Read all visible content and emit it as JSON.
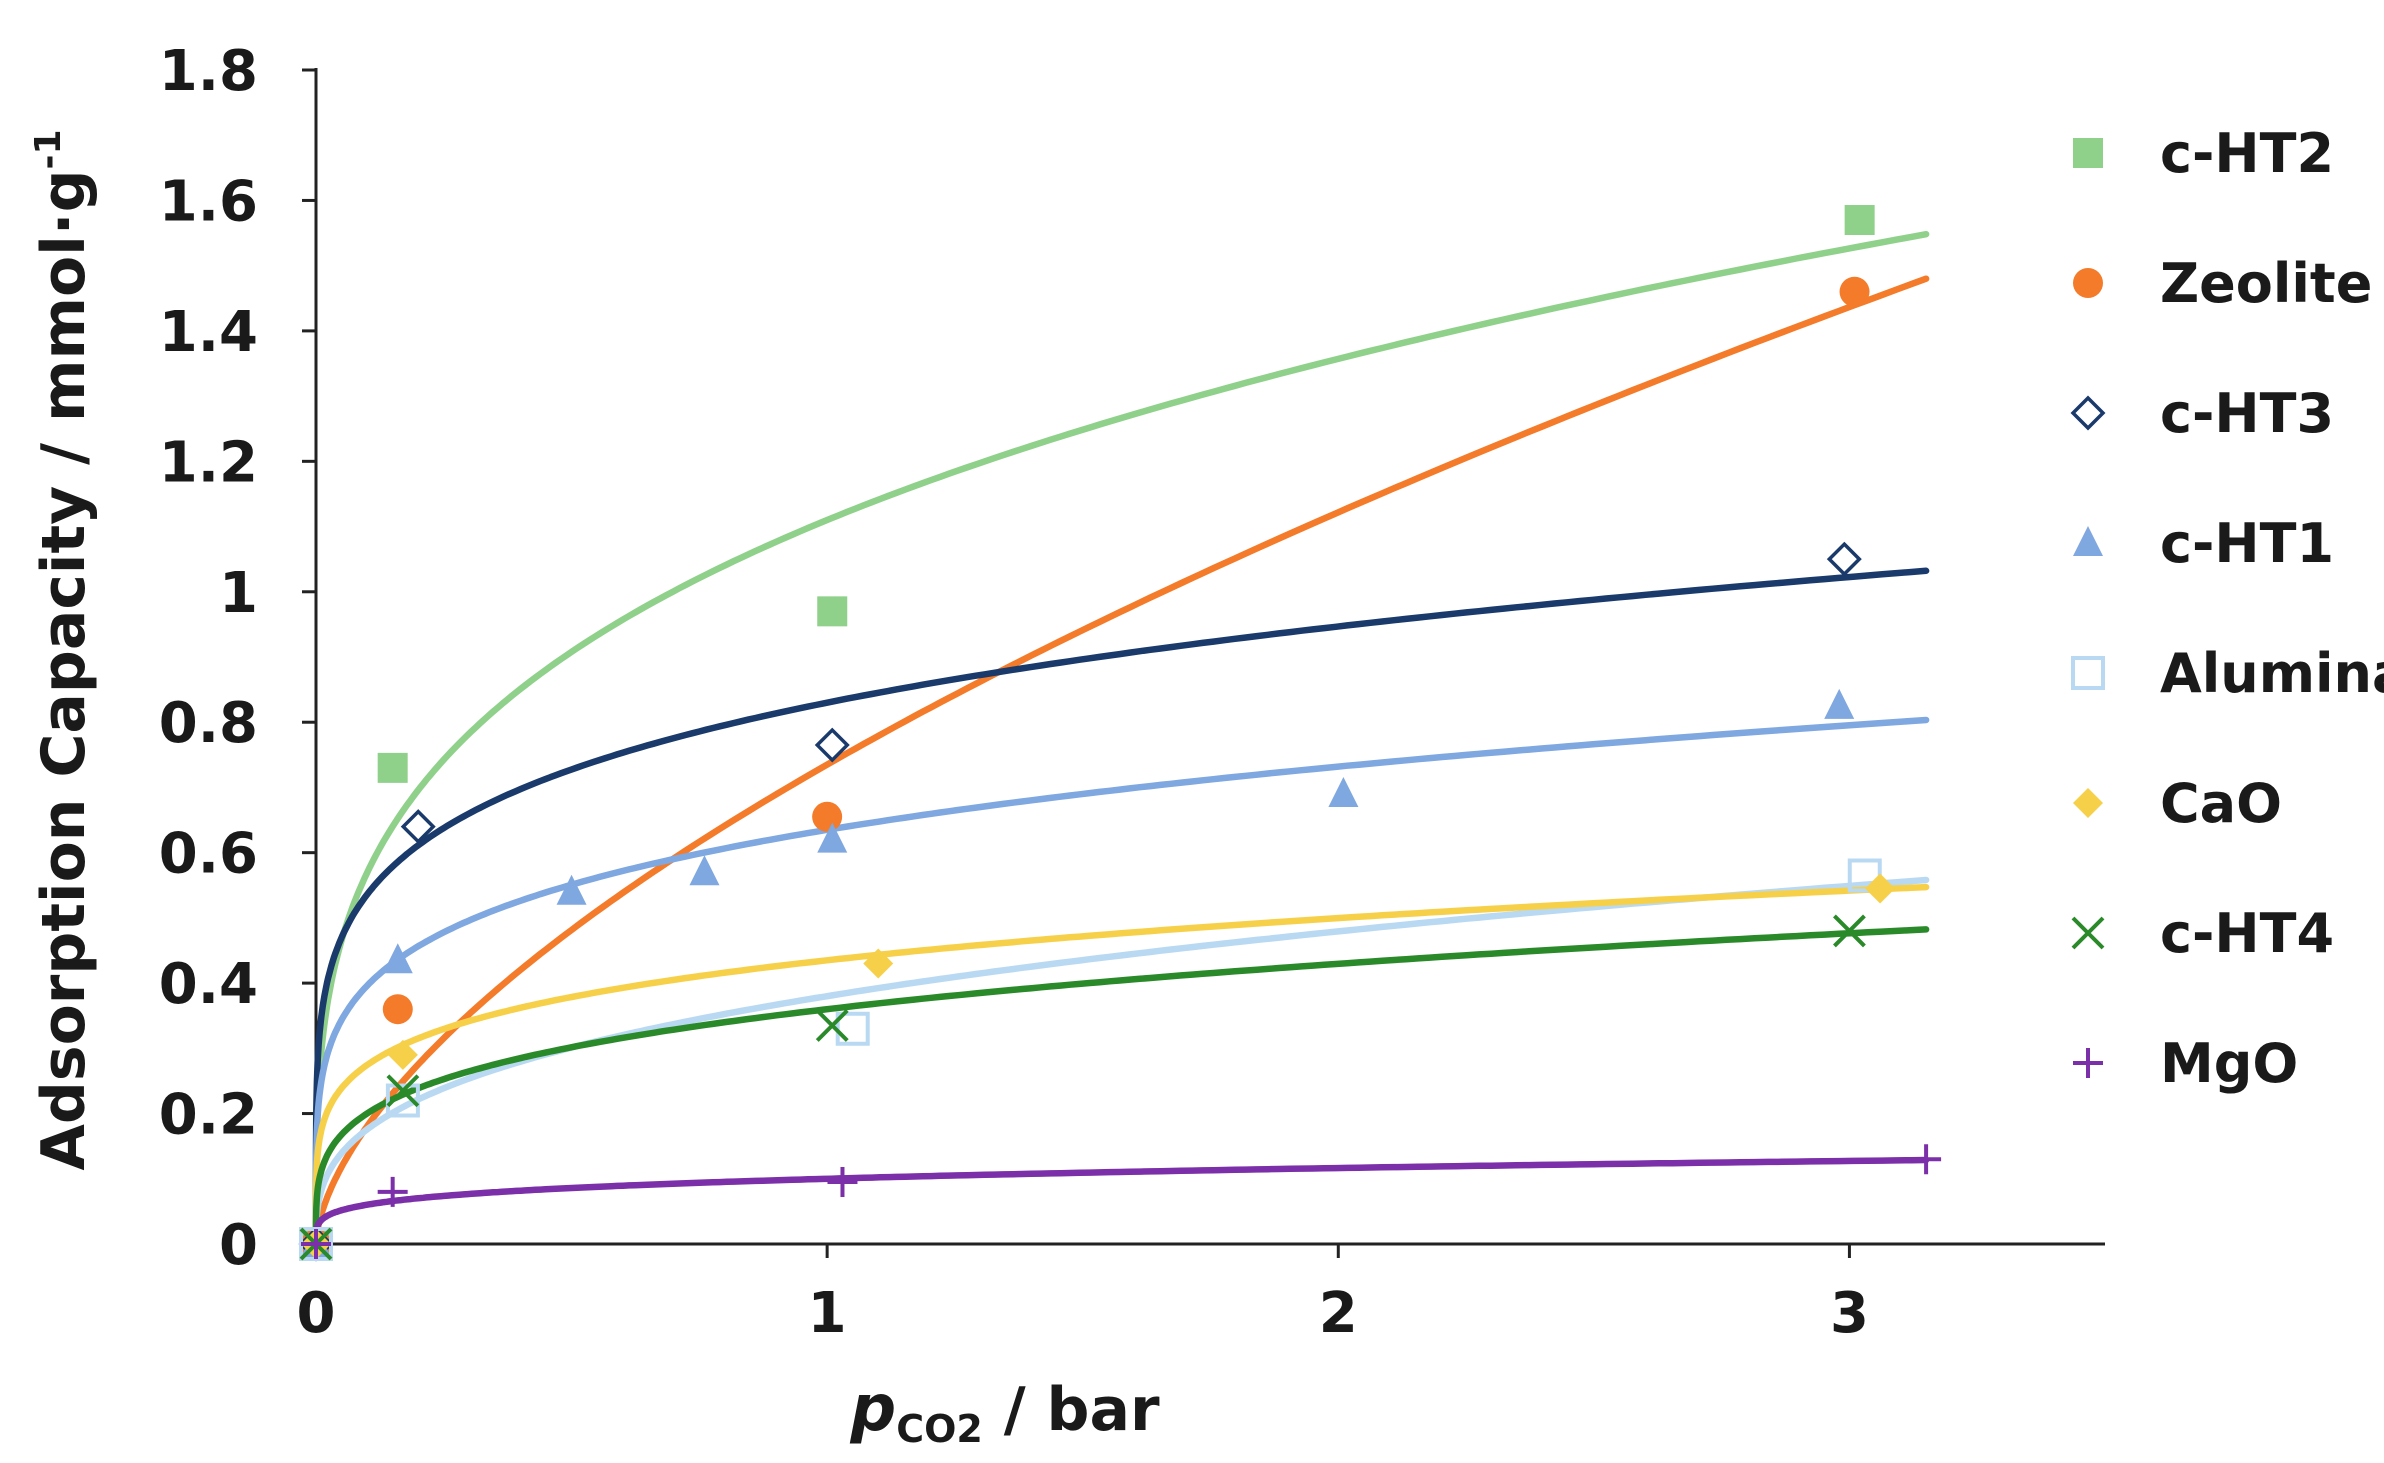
{
  "chart_data": {
    "type": "scatter",
    "title": "",
    "ylabel": "Adsorption Capacity / mmol·g",
    "ylabel_superscript": "-1",
    "xlabel_italic": "p",
    "xlabel_subscript": "CO2",
    "xlabel_rest": " / bar",
    "xlim": [
      0,
      3.5
    ],
    "ylim": [
      0,
      1.8
    ],
    "x_ticks": [
      0,
      1,
      2,
      3
    ],
    "x_tick_labels": [
      "0",
      "1",
      "2",
      "3"
    ],
    "y_ticks": [
      0,
      0.2,
      0.4,
      0.6,
      0.8,
      1.0,
      1.2,
      1.4,
      1.6,
      1.8
    ],
    "y_tick_labels": [
      "0",
      "0.2",
      "0.4",
      "0.6",
      "0.8",
      "1",
      "1.2",
      "1.4",
      "1.6",
      "1.8"
    ],
    "grid": false,
    "legend_position": "right",
    "series": [
      {
        "name": "c-HT2",
        "color": "#8fd18a",
        "marker": "square-filled",
        "points": [
          [
            0,
            0
          ],
          [
            0.15,
            0.73
          ],
          [
            1.01,
            0.97
          ],
          [
            3.02,
            1.57
          ]
        ],
        "fit": {
          "a": 1.11,
          "b": 0.29
        }
      },
      {
        "name": "Zeolite",
        "color": "#f47b2a",
        "marker": "circle-filled",
        "points": [
          [
            0,
            0
          ],
          [
            0.16,
            0.36
          ],
          [
            1.0,
            0.655
          ],
          [
            3.01,
            1.46
          ]
        ],
        "fit": {
          "a": 0.735,
          "b": 0.61
        }
      },
      {
        "name": "c-HT3",
        "color": "#1a3a6b",
        "marker": "diamond-open",
        "points": [
          [
            0,
            0
          ],
          [
            0.2,
            0.64
          ],
          [
            1.01,
            0.765
          ],
          [
            2.99,
            1.05
          ]
        ],
        "fit": {
          "a": 0.83,
          "b": 0.19
        }
      },
      {
        "name": "c-HT1",
        "color": "#7fa7e0",
        "marker": "triangle-filled",
        "points": [
          [
            0,
            0
          ],
          [
            0.16,
            0.435
          ],
          [
            0.5,
            0.54
          ],
          [
            0.76,
            0.57
          ],
          [
            1.01,
            0.62
          ],
          [
            2.01,
            0.69
          ],
          [
            2.98,
            0.825
          ]
        ],
        "fit": {
          "a": 0.635,
          "b": 0.205
        }
      },
      {
        "name": "Alumina",
        "color": "#b9d9f2",
        "marker": "square-open",
        "points": [
          [
            0,
            0
          ],
          [
            0.17,
            0.22
          ],
          [
            1.05,
            0.33
          ],
          [
            3.03,
            0.565
          ]
        ],
        "fit": {
          "a": 0.38,
          "b": 0.335
        }
      },
      {
        "name": "CaO",
        "color": "#f7d04a",
        "marker": "diamond-filled",
        "points": [
          [
            0,
            0
          ],
          [
            0.17,
            0.29
          ],
          [
            1.1,
            0.43
          ],
          [
            3.06,
            0.545
          ]
        ],
        "fit": {
          "a": 0.435,
          "b": 0.2
        }
      },
      {
        "name": "c-HT4",
        "color": "#2a8a2a",
        "marker": "x",
        "points": [
          [
            0,
            0
          ],
          [
            0.17,
            0.235
          ],
          [
            1.01,
            0.335
          ],
          [
            3.0,
            0.48
          ]
        ],
        "fit": {
          "a": 0.36,
          "b": 0.255
        }
      },
      {
        "name": "MgO",
        "color": "#7b2fa8",
        "marker": "plus",
        "points": [
          [
            0,
            0
          ],
          [
            0.15,
            0.08
          ],
          [
            1.03,
            0.095
          ],
          [
            3.15,
            0.13
          ]
        ],
        "fit": {
          "a": 0.1,
          "b": 0.22
        }
      }
    ],
    "fit_x_max": 3.15
  }
}
